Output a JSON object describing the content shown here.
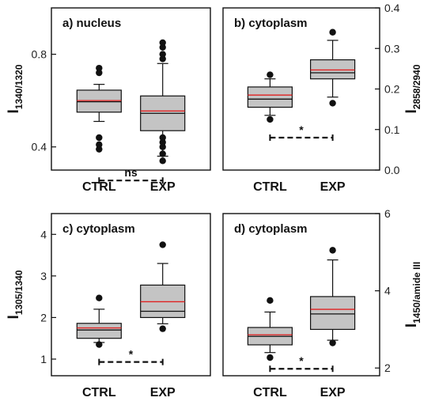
{
  "chart_data": [
    {
      "type": "box",
      "title": "a) nucleus",
      "ylabel": "I",
      "ylabel_sub": "1340/1320",
      "axis_side": "left",
      "ylim": [
        0.3,
        1.0
      ],
      "yticks": [
        "0.4",
        "0.8"
      ],
      "yticks_values": [
        0.4,
        0.8
      ],
      "categories": [
        "CTRL",
        "EXP"
      ],
      "boxes": [
        {
          "name": "CTRL",
          "whisker_low": 0.51,
          "q1": 0.55,
          "median": 0.595,
          "mean": 0.6,
          "q3": 0.645,
          "whisker_high": 0.67,
          "outliers": [
            0.39,
            0.41,
            0.44,
            0.72,
            0.74
          ]
        },
        {
          "name": "EXP",
          "whisker_low": 0.36,
          "q1": 0.47,
          "median": 0.545,
          "mean": 0.555,
          "q3": 0.62,
          "whisker_high": 0.76,
          "outliers": [
            0.34,
            0.37,
            0.4,
            0.42,
            0.44,
            0.78,
            0.8,
            0.83,
            0.85
          ]
        }
      ],
      "significance": {
        "label": "ns",
        "y": 0.255
      }
    },
    {
      "type": "box",
      "title": "b) cytoplasm",
      "ylabel": "I",
      "ylabel_sub": "2858/2940",
      "axis_side": "right",
      "ylim": [
        0.0,
        0.4
      ],
      "yticks": [
        "0.0",
        "0.1",
        "0.2",
        "0.3",
        "0.4"
      ],
      "yticks_values": [
        0.0,
        0.1,
        0.2,
        0.3,
        0.4
      ],
      "categories": [
        "CTRL",
        "EXP"
      ],
      "boxes": [
        {
          "name": "CTRL",
          "whisker_low": 0.135,
          "q1": 0.155,
          "median": 0.175,
          "mean": 0.185,
          "q3": 0.205,
          "whisker_high": 0.225,
          "outliers": [
            0.125,
            0.235
          ]
        },
        {
          "name": "EXP",
          "whisker_low": 0.18,
          "q1": 0.225,
          "median": 0.24,
          "mean": 0.247,
          "q3": 0.272,
          "whisker_high": 0.32,
          "outliers": [
            0.165,
            0.34
          ]
        }
      ],
      "significance": {
        "label": "*",
        "y": 0.08
      }
    },
    {
      "type": "box",
      "title": "c) cytoplasm",
      "ylabel": "I",
      "ylabel_sub": "1305/1340",
      "axis_side": "left",
      "ylim": [
        0.6,
        4.5
      ],
      "yticks": [
        "1",
        "2",
        "3",
        "4"
      ],
      "yticks_values": [
        1,
        2,
        3,
        4
      ],
      "categories": [
        "CTRL",
        "EXP"
      ],
      "boxes": [
        {
          "name": "CTRL",
          "whisker_low": 1.4,
          "q1": 1.5,
          "median": 1.7,
          "mean": 1.75,
          "q3": 1.86,
          "whisker_high": 2.2,
          "outliers": [
            1.35,
            2.47
          ]
        },
        {
          "name": "EXP",
          "whisker_low": 1.85,
          "q1": 2.0,
          "median": 2.15,
          "mean": 2.38,
          "q3": 2.78,
          "whisker_high": 3.3,
          "outliers": [
            1.73,
            3.75
          ]
        }
      ],
      "significance": {
        "label": "*",
        "y": 0.93
      }
    },
    {
      "type": "box",
      "title": "d) cytoplasm",
      "ylabel": "I",
      "ylabel_sub": "1450/amide III",
      "axis_side": "right",
      "ylim": [
        1.8,
        6.0
      ],
      "yticks": [
        "2",
        "4",
        "6"
      ],
      "yticks_values": [
        2,
        4,
        6
      ],
      "categories": [
        "CTRL",
        "EXP"
      ],
      "boxes": [
        {
          "name": "CTRL",
          "whisker_low": 2.4,
          "q1": 2.6,
          "median": 2.82,
          "mean": 2.86,
          "q3": 3.05,
          "whisker_high": 3.45,
          "outliers": [
            2.27,
            3.75
          ]
        },
        {
          "name": "EXP",
          "whisker_low": 2.72,
          "q1": 3.0,
          "median": 3.4,
          "mean": 3.52,
          "q3": 3.85,
          "whisker_high": 4.8,
          "outliers": [
            2.65,
            5.05
          ]
        }
      ],
      "significance": {
        "label": "*",
        "y": 1.98
      }
    }
  ]
}
